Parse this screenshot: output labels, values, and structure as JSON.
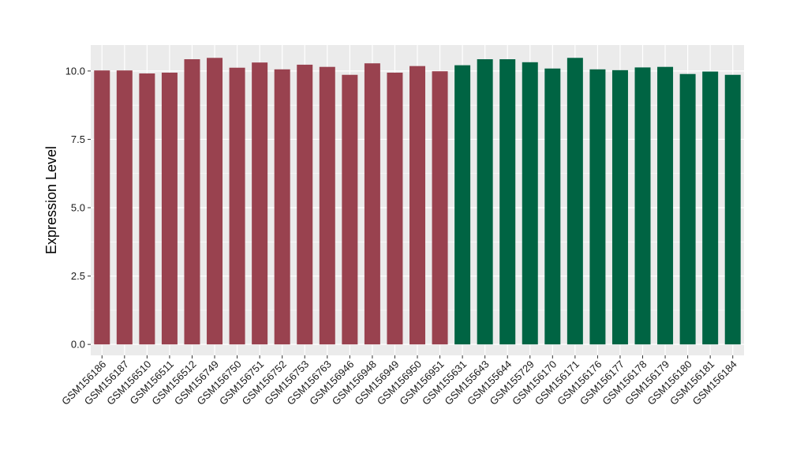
{
  "chart_data": {
    "type": "bar",
    "title": "",
    "xlabel": "",
    "ylabel": "Expression Level",
    "ylim": [
      -0.4,
      10.95
    ],
    "yticks": [
      0.0,
      2.5,
      5.0,
      7.5,
      10.0
    ],
    "ytick_labels": [
      "0.0",
      "2.5",
      "5.0",
      "7.5",
      "10.0"
    ],
    "grid": true,
    "legend": "none",
    "panel_background": "#ebebeb",
    "gridline_color": "#ffffff",
    "categories": [
      "GSM156186",
      "GSM156187",
      "GSM156510",
      "GSM156511",
      "GSM156512",
      "GSM156749",
      "GSM156750",
      "GSM156751",
      "GSM156752",
      "GSM156753",
      "GSM156763",
      "GSM156946",
      "GSM156948",
      "GSM156949",
      "GSM156950",
      "GSM156951",
      "GSM155631",
      "GSM155643",
      "GSM155644",
      "GSM155729",
      "GSM156170",
      "GSM156171",
      "GSM156176",
      "GSM156177",
      "GSM156178",
      "GSM156179",
      "GSM156180",
      "GSM156181",
      "GSM156184"
    ],
    "values": [
      10.02,
      10.02,
      9.91,
      9.94,
      10.43,
      10.48,
      10.12,
      10.31,
      10.06,
      10.23,
      10.15,
      9.86,
      10.28,
      9.94,
      10.18,
      9.99,
      10.21,
      10.43,
      10.43,
      10.32,
      10.09,
      10.48,
      10.06,
      10.03,
      10.13,
      10.15,
      9.89,
      9.98,
      9.86
    ],
    "groups": [
      0,
      0,
      0,
      0,
      0,
      0,
      0,
      0,
      0,
      0,
      0,
      0,
      0,
      0,
      0,
      0,
      1,
      1,
      1,
      1,
      1,
      1,
      1,
      1,
      1,
      1,
      1,
      1,
      1
    ],
    "group_colors": [
      "#99424f",
      "#006443"
    ]
  }
}
